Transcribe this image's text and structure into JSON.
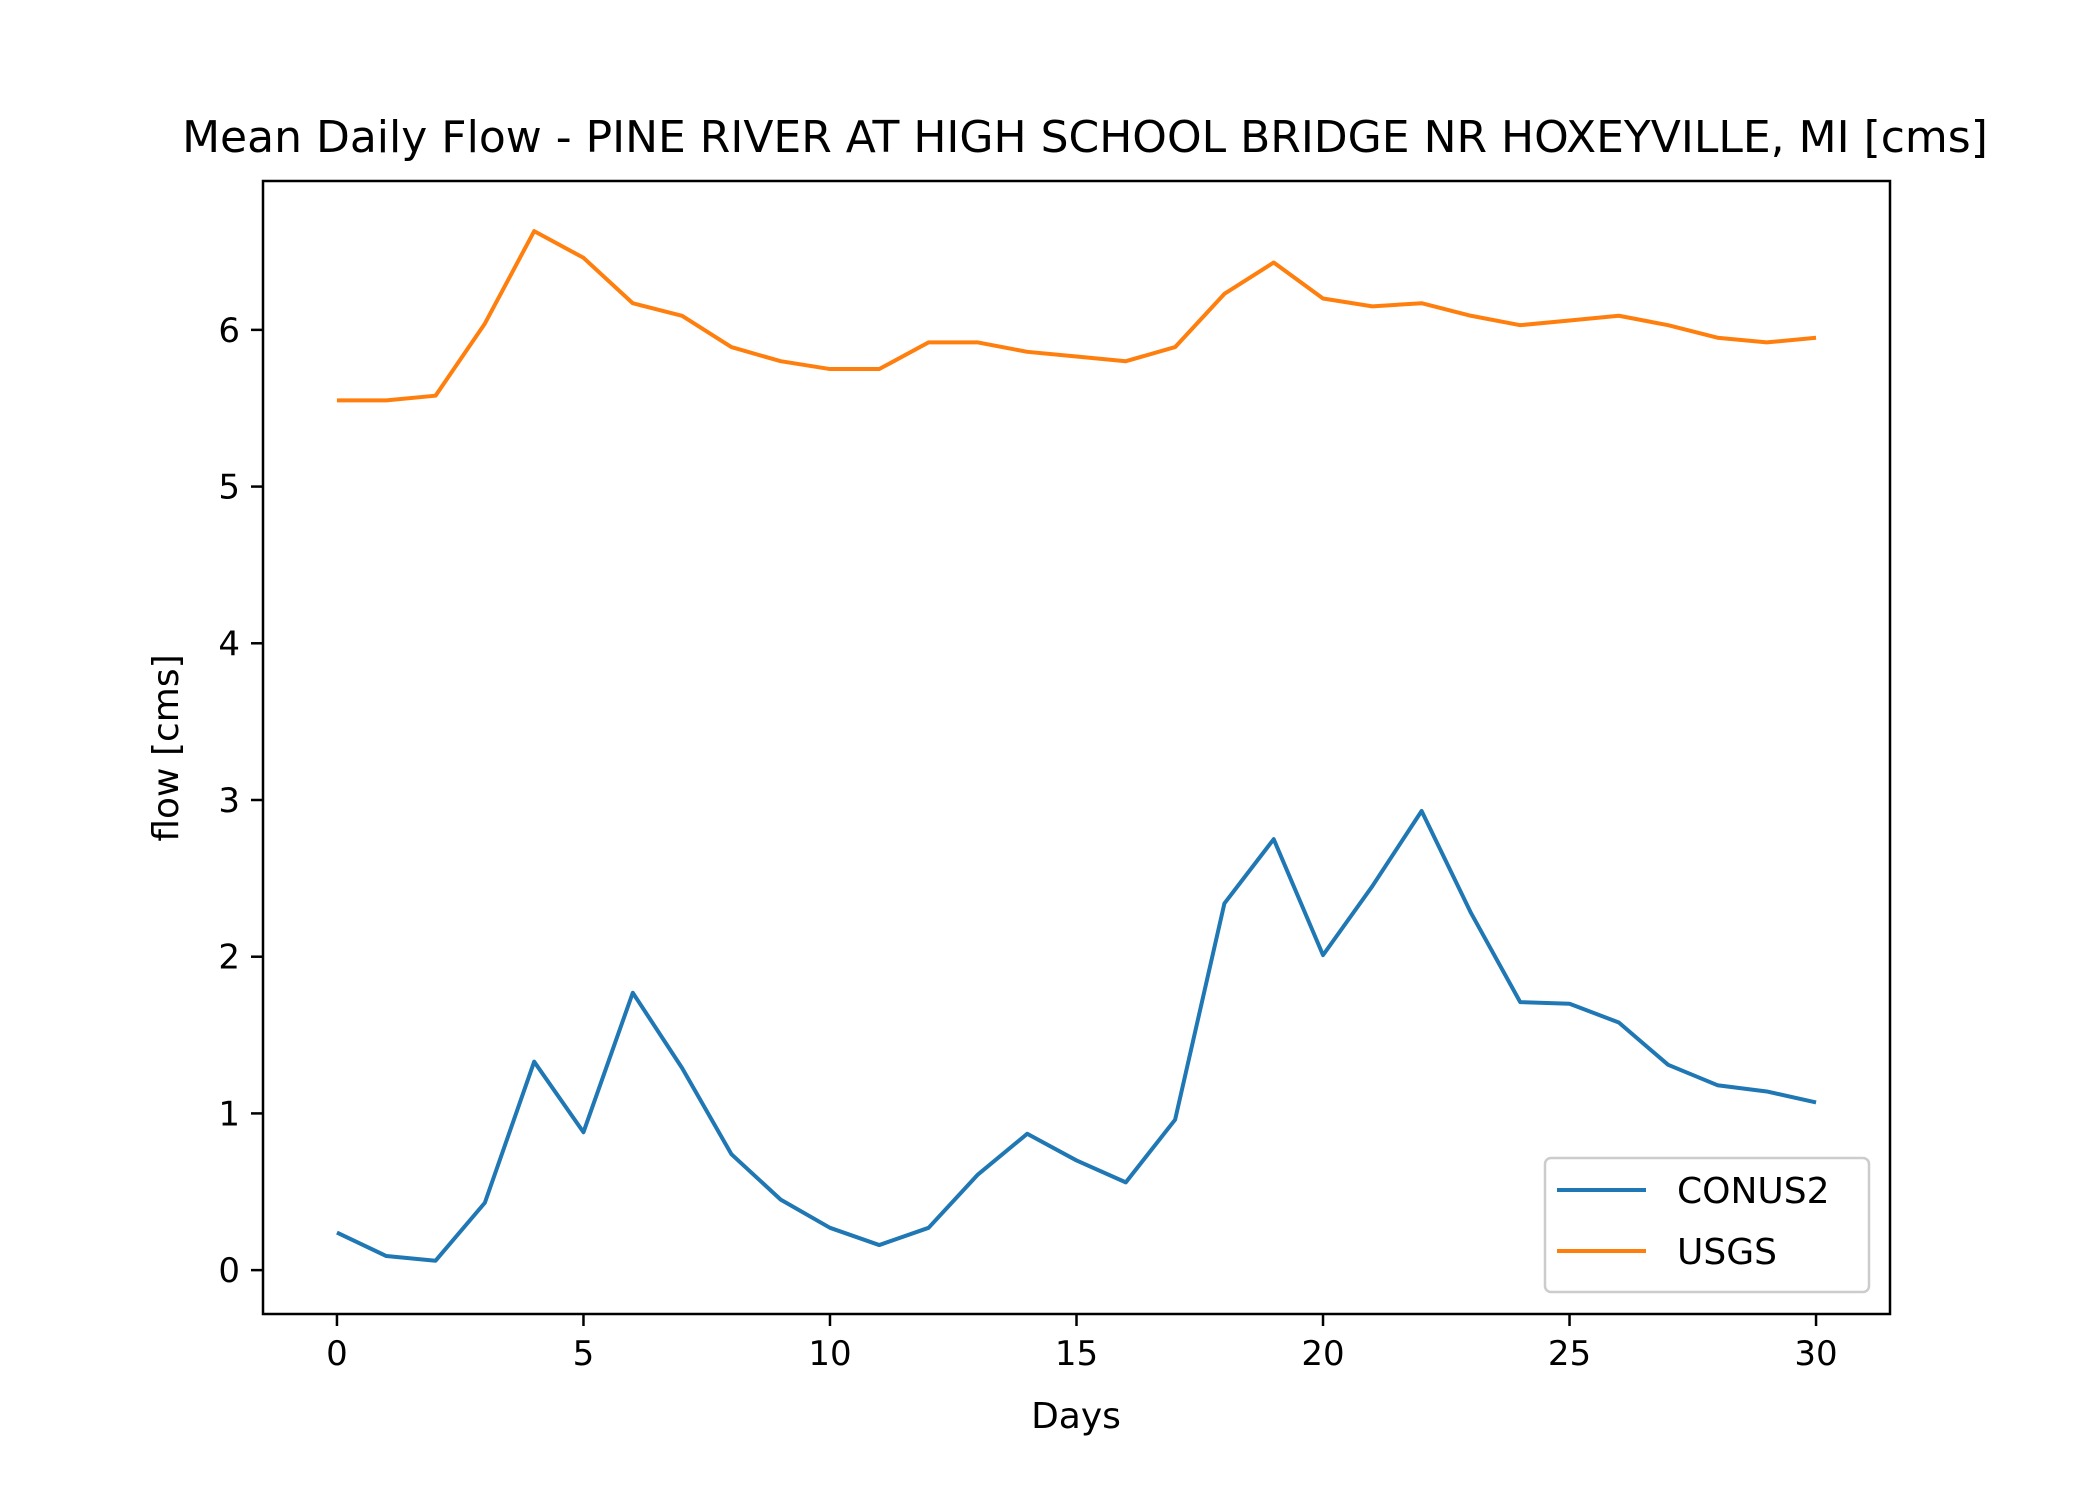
{
  "chart_data": {
    "type": "line",
    "title": "Mean Daily Flow - PINE RIVER AT HIGH SCHOOL BRIDGE NR HOXEYVILLE, MI [cms]",
    "xlabel": "Days",
    "ylabel": "flow [cms]",
    "xlim": [
      -1.5,
      31.5
    ],
    "ylim": [
      -0.28,
      6.95
    ],
    "xticks": [
      0,
      5,
      10,
      15,
      20,
      25,
      30
    ],
    "yticks": [
      0,
      1,
      2,
      3,
      4,
      5,
      6
    ],
    "grid": false,
    "legend_position": "lower-right",
    "x": [
      0,
      1,
      2,
      3,
      4,
      5,
      6,
      7,
      8,
      9,
      10,
      11,
      12,
      13,
      14,
      15,
      16,
      17,
      18,
      19,
      20,
      21,
      22,
      23,
      24,
      25,
      26,
      27,
      28,
      29,
      30
    ],
    "series": [
      {
        "name": "CONUS2",
        "color": "#1f77b4",
        "values": [
          0.24,
          0.09,
          0.06,
          0.43,
          1.33,
          0.88,
          1.77,
          1.29,
          0.74,
          0.45,
          0.27,
          0.16,
          0.27,
          0.61,
          0.87,
          0.7,
          0.56,
          0.96,
          2.34,
          2.75,
          2.01,
          2.45,
          2.93,
          2.28,
          1.71,
          1.7,
          1.58,
          1.31,
          1.18,
          1.14,
          1.07
        ]
      },
      {
        "name": "USGS",
        "color": "#ff7f0e",
        "values": [
          5.55,
          5.55,
          5.58,
          6.04,
          6.63,
          6.46,
          6.17,
          6.09,
          5.89,
          5.8,
          5.75,
          5.75,
          5.92,
          5.92,
          5.86,
          5.83,
          5.8,
          5.89,
          6.23,
          6.43,
          6.2,
          6.15,
          6.17,
          6.09,
          6.03,
          6.06,
          6.09,
          6.03,
          5.95,
          5.92,
          5.95
        ]
      }
    ]
  }
}
